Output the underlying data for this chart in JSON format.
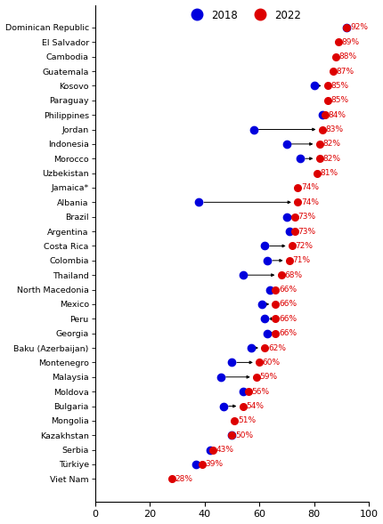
{
  "countries": [
    "Dominican Republic",
    "El Salvador",
    "Cambodia",
    "Guatemala",
    "Kosovo",
    "Paraguay",
    "Philippines",
    "Jordan",
    "Indonesia",
    "Morocco",
    "Uzbekistan",
    "Jamaica*",
    "Albania",
    "Brazil",
    "Argentina",
    "Costa Rica",
    "Colombia",
    "Thailand",
    "North Macedonia",
    "Mexico",
    "Peru",
    "Georgia",
    "Baku (Azerbaijan)",
    "Montenegro",
    "Malaysia",
    "Moldova",
    "Bulgaria",
    "Mongolia",
    "Kazakhstan",
    "Serbia",
    "Türkiye",
    "Viet Nam"
  ],
  "val2022": [
    92,
    89,
    88,
    87,
    85,
    85,
    84,
    83,
    82,
    82,
    81,
    74,
    74,
    73,
    73,
    72,
    71,
    68,
    66,
    66,
    66,
    66,
    62,
    60,
    59,
    56,
    54,
    51,
    50,
    43,
    39,
    28
  ],
  "val2018": [
    92,
    null,
    null,
    null,
    80,
    null,
    83,
    58,
    70,
    75,
    null,
    null,
    38,
    70,
    71,
    62,
    63,
    54,
    64,
    61,
    62,
    63,
    57,
    50,
    46,
    54,
    47,
    null,
    50,
    42,
    37,
    null
  ],
  "dot_color_2018": "#0000dd",
  "dot_color_2022": "#dd0000",
  "arrow_color": "#000000",
  "label_color": "#dd0000",
  "background_color": "#ffffff",
  "xlim": [
    0,
    100
  ],
  "xticks": [
    0,
    20,
    40,
    60,
    80,
    100
  ],
  "legend_label_2018": "2018",
  "legend_label_2022": "2022",
  "figsize": [
    4.3,
    5.89
  ],
  "dpi": 100
}
